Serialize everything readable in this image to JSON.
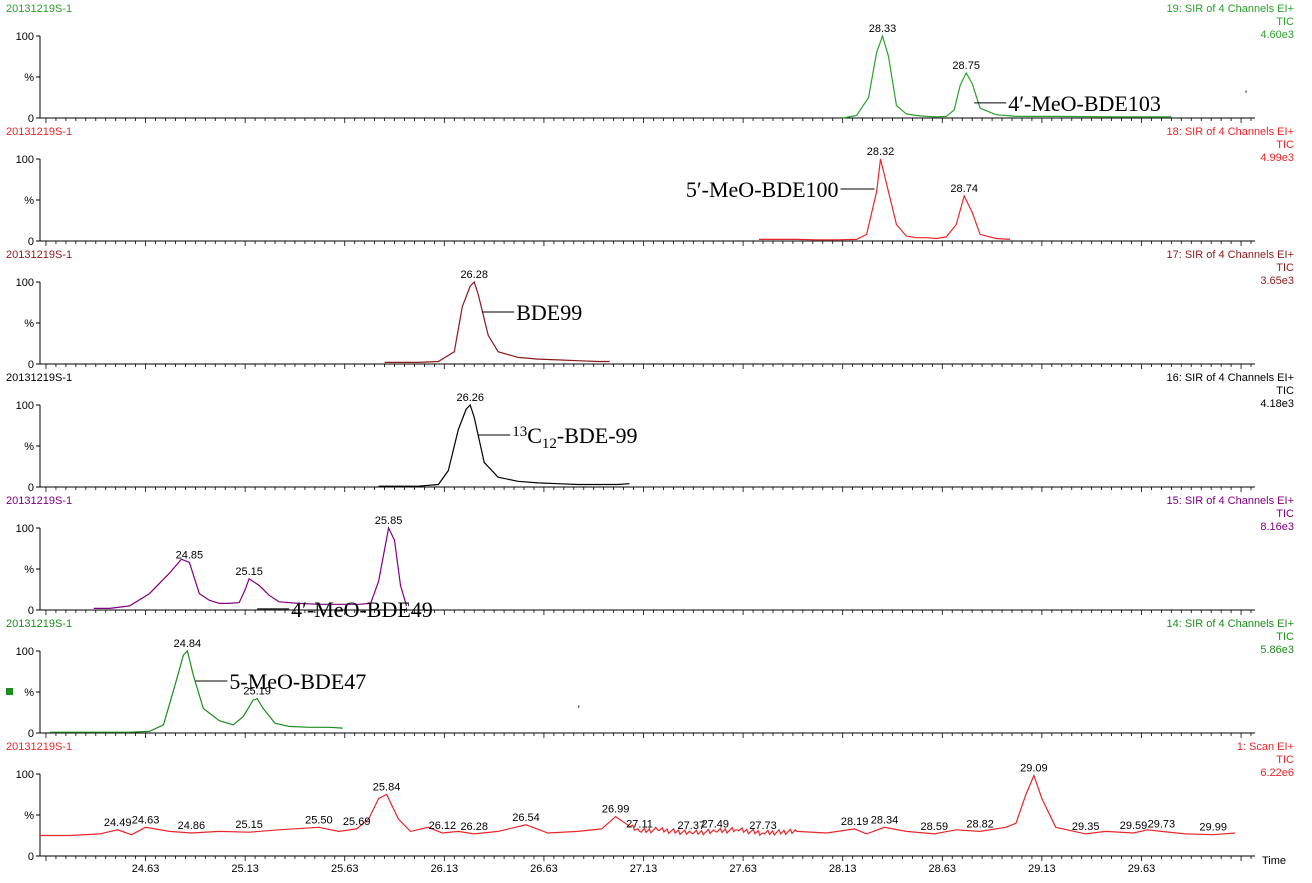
{
  "chart_data": {
    "type": "line",
    "xlabel": "Time",
    "xlim": [
      24.1,
      30.2
    ],
    "x_ticks": [
      "24.63",
      "25.13",
      "25.63",
      "26.13",
      "26.63",
      "27.13",
      "27.63",
      "28.13",
      "28.63",
      "29.13",
      "29.63"
    ],
    "panels": [
      {
        "sample": "20131219S-1",
        "channel": "19: SIR of 4 Channels EI+",
        "tic": "TIC",
        "intensity": "4.60e3",
        "color": "#2ca02c",
        "y_labels": [
          "100",
          "%",
          "0"
        ],
        "x": [
          28.13,
          28.2,
          28.26,
          28.3,
          28.33,
          28.36,
          28.4,
          28.45,
          28.5,
          28.55,
          28.6,
          28.65,
          28.69,
          28.72,
          28.75,
          28.78,
          28.82,
          28.9,
          29.0,
          29.2,
          29.5,
          29.78
        ],
        "y": [
          0,
          3,
          25,
          80,
          100,
          75,
          15,
          5,
          3,
          2,
          1.5,
          2,
          10,
          40,
          55,
          42,
          12,
          4,
          2,
          2,
          1.5,
          1.5
        ],
        "peaks": [
          {
            "x": 28.33,
            "label": "28.33"
          },
          {
            "x": 28.75,
            "label": "28.75"
          }
        ],
        "annotation": {
          "text": "4′-MeO-BDE103",
          "peak_x": 28.75
        },
        "extra_mark": {
          "x": 30.15,
          "text": "'"
        }
      },
      {
        "sample": "20131219S-1",
        "channel": "18: SIR of 4 Channels EI+",
        "tic": "TIC",
        "intensity": "4.99e3",
        "color": "#e8262a",
        "y_labels": [
          "100",
          "%",
          "0"
        ],
        "x": [
          27.71,
          27.8,
          27.9,
          28.0,
          28.1,
          28.2,
          28.25,
          28.3,
          28.32,
          28.35,
          28.4,
          28.45,
          28.5,
          28.55,
          28.6,
          28.65,
          28.7,
          28.74,
          28.78,
          28.82,
          28.9,
          28.97
        ],
        "y": [
          2,
          2,
          2,
          1.5,
          1.5,
          2,
          8,
          60,
          100,
          70,
          20,
          6,
          4,
          4,
          3,
          5,
          20,
          55,
          35,
          8,
          3,
          2
        ],
        "peaks": [
          {
            "x": 28.32,
            "label": "28.32"
          },
          {
            "x": 28.74,
            "label": "28.74"
          }
        ],
        "annotation": {
          "text": "5′-MeO-BDE100",
          "peak_x": 28.32,
          "side": "left"
        }
      },
      {
        "sample": "20131219S-1",
        "channel": "17: SIR of 4 Channels EI+",
        "tic": "TIC",
        "intensity": "3.65e3",
        "color": "#8b1a1a",
        "y_labels": [
          "100",
          "%",
          "0"
        ],
        "x": [
          25.83,
          25.9,
          26.0,
          26.1,
          26.18,
          26.22,
          26.26,
          26.28,
          26.3,
          26.35,
          26.4,
          26.5,
          26.6,
          26.7,
          26.8,
          26.9,
          26.96
        ],
        "y": [
          2,
          2,
          2,
          3,
          15,
          70,
          95,
          100,
          85,
          35,
          15,
          8,
          6,
          5,
          4,
          3,
          3
        ],
        "peaks": [
          {
            "x": 26.28,
            "label": "26.28"
          }
        ],
        "annotation": {
          "text": "BDE99",
          "peak_x": 26.28
        }
      },
      {
        "sample": "20131219S-1",
        "channel": "16: SIR of 4 Channels EI+",
        "tic": "TIC",
        "intensity": "4.18e3",
        "color": "#000000",
        "y_labels": [
          "100",
          "%",
          "0"
        ],
        "x": [
          25.8,
          25.9,
          26.0,
          26.1,
          26.15,
          26.2,
          26.24,
          26.26,
          26.28,
          26.33,
          26.4,
          26.5,
          26.6,
          26.7,
          26.8,
          26.9,
          27.0,
          27.06
        ],
        "y": [
          1,
          1,
          1,
          3,
          20,
          70,
          95,
          100,
          85,
          30,
          12,
          7,
          5,
          4,
          3,
          3,
          3,
          4
        ],
        "peaks": [
          {
            "x": 26.26,
            "label": "26.26"
          }
        ],
        "annotation": {
          "html": "<tspan font-size=\"15\" dy=\"-7\">13</tspan><tspan dy=\"7\">C</tspan><tspan font-size=\"15\" dy=\"5\">12</tspan><tspan dy=\"-5\">-BDE-99</tspan>",
          "peak_x": 26.26
        }
      },
      {
        "sample": "20131219S-1",
        "channel": "15: SIR of 4 Channels EI+",
        "tic": "TIC",
        "intensity": "8.16e3",
        "color": "#800080",
        "y_labels": [
          "100",
          "%",
          "0"
        ],
        "x": [
          24.37,
          24.45,
          24.55,
          24.65,
          24.75,
          24.81,
          24.85,
          24.9,
          24.95,
          25.0,
          25.05,
          25.1,
          25.13,
          25.15,
          25.2,
          25.25,
          25.3,
          25.4,
          25.5,
          25.6,
          25.7,
          25.76,
          25.8,
          25.85,
          25.88,
          25.91,
          25.94
        ],
        "y": [
          2,
          2,
          5,
          20,
          45,
          62,
          58,
          20,
          12,
          8,
          8,
          9,
          25,
          38,
          30,
          18,
          10,
          8,
          7,
          7,
          7,
          8,
          35,
          100,
          85,
          30,
          5
        ],
        "peaks": [
          {
            "x": 24.85,
            "label": "24.85"
          },
          {
            "x": 25.15,
            "label": "25.15"
          },
          {
            "x": 25.85,
            "label": "25.85"
          }
        ],
        "annotation": {
          "text": "4′-MeO-BDE49",
          "peak_x": 25.15
        }
      },
      {
        "sample": "20131219S-1",
        "channel": "14: SIR of 4 Channels EI+",
        "tic": "TIC",
        "intensity": "5.86e3",
        "color": "#1e8c1e",
        "y_labels": [
          "100",
          "%",
          "0"
        ],
        "x": [
          24.15,
          24.3,
          24.45,
          24.55,
          24.65,
          24.72,
          24.78,
          24.82,
          24.84,
          24.87,
          24.92,
          25.0,
          25.07,
          25.12,
          25.17,
          25.19,
          25.22,
          25.28,
          25.35,
          25.45,
          25.55,
          25.62
        ],
        "y": [
          1,
          1,
          1,
          1,
          2,
          10,
          60,
          95,
          100,
          70,
          30,
          15,
          10,
          20,
          40,
          42,
          30,
          12,
          8,
          7,
          7,
          6
        ],
        "peaks": [
          {
            "x": 24.84,
            "label": "24.84"
          },
          {
            "x": 25.19,
            "label": "25.19"
          }
        ],
        "annotation": {
          "text": "5-MeO-BDE47",
          "peak_x": 24.84
        },
        "extra_mark": {
          "x": 26.8,
          "text": "'"
        }
      },
      {
        "sample": "20131219S-1",
        "channel": "1: Scan EI+",
        "tic": "TIC",
        "intensity": "6.22e6",
        "color": "#e8262a",
        "y_labels": [
          "100",
          "%",
          "0"
        ],
        "x": [
          24.1,
          24.25,
          24.4,
          24.49,
          24.56,
          24.63,
          24.75,
          24.86,
          25.0,
          25.15,
          25.3,
          25.5,
          25.6,
          25.69,
          25.75,
          25.8,
          25.84,
          25.9,
          25.96,
          26.05,
          26.12,
          26.2,
          26.28,
          26.4,
          26.54,
          26.65,
          26.8,
          26.92,
          26.99,
          27.05,
          27.11,
          27.2,
          27.37,
          27.49,
          27.6,
          27.73,
          27.9,
          28.05,
          28.19,
          28.25,
          28.34,
          28.45,
          28.59,
          28.7,
          28.82,
          28.95,
          29.0,
          29.05,
          29.09,
          29.13,
          29.2,
          29.35,
          29.45,
          29.59,
          29.66,
          29.73,
          29.85,
          29.99,
          30.1
        ],
        "y": [
          25,
          25,
          27,
          32,
          26,
          35,
          30,
          28,
          30,
          29,
          32,
          35,
          30,
          33,
          45,
          70,
          75,
          45,
          30,
          35,
          28,
          30,
          27,
          30,
          38,
          28,
          30,
          33,
          48,
          38,
          30,
          32,
          28,
          30,
          32,
          28,
          30,
          28,
          33,
          27,
          35,
          30,
          27,
          32,
          30,
          35,
          40,
          75,
          98,
          70,
          35,
          27,
          30,
          28,
          32,
          30,
          27,
          26,
          28
        ],
        "peaks": [
          {
            "x": 24.49,
            "label": "24.49"
          },
          {
            "x": 24.63,
            "label": "24.63"
          },
          {
            "x": 24.86,
            "label": "24.86"
          },
          {
            "x": 25.15,
            "label": "25.15"
          },
          {
            "x": 25.5,
            "label": "25.50"
          },
          {
            "x": 25.69,
            "label": "25.69"
          },
          {
            "x": 25.84,
            "label": "25.84"
          },
          {
            "x": 26.12,
            "label": "26.12"
          },
          {
            "x": 26.28,
            "label": "26.28"
          },
          {
            "x": 26.54,
            "label": "26.54"
          },
          {
            "x": 26.99,
            "label": "26.99"
          },
          {
            "x": 27.11,
            "label": "27.11"
          },
          {
            "x": 27.37,
            "label": "27.37"
          },
          {
            "x": 27.49,
            "label": "27.49"
          },
          {
            "x": 27.73,
            "label": "27.73"
          },
          {
            "x": 28.19,
            "label": "28.19"
          },
          {
            "x": 28.34,
            "label": "28.34"
          },
          {
            "x": 28.59,
            "label": "28.59"
          },
          {
            "x": 28.82,
            "label": "28.82"
          },
          {
            "x": 29.09,
            "label": "29.09"
          },
          {
            "x": 29.35,
            "label": "29.35"
          },
          {
            "x": 29.59,
            "label": "29.59"
          },
          {
            "x": 29.73,
            "label": "29.73"
          },
          {
            "x": 29.99,
            "label": "29.99"
          }
        ],
        "noise_region": [
          27.05,
          27.9
        ]
      }
    ]
  }
}
